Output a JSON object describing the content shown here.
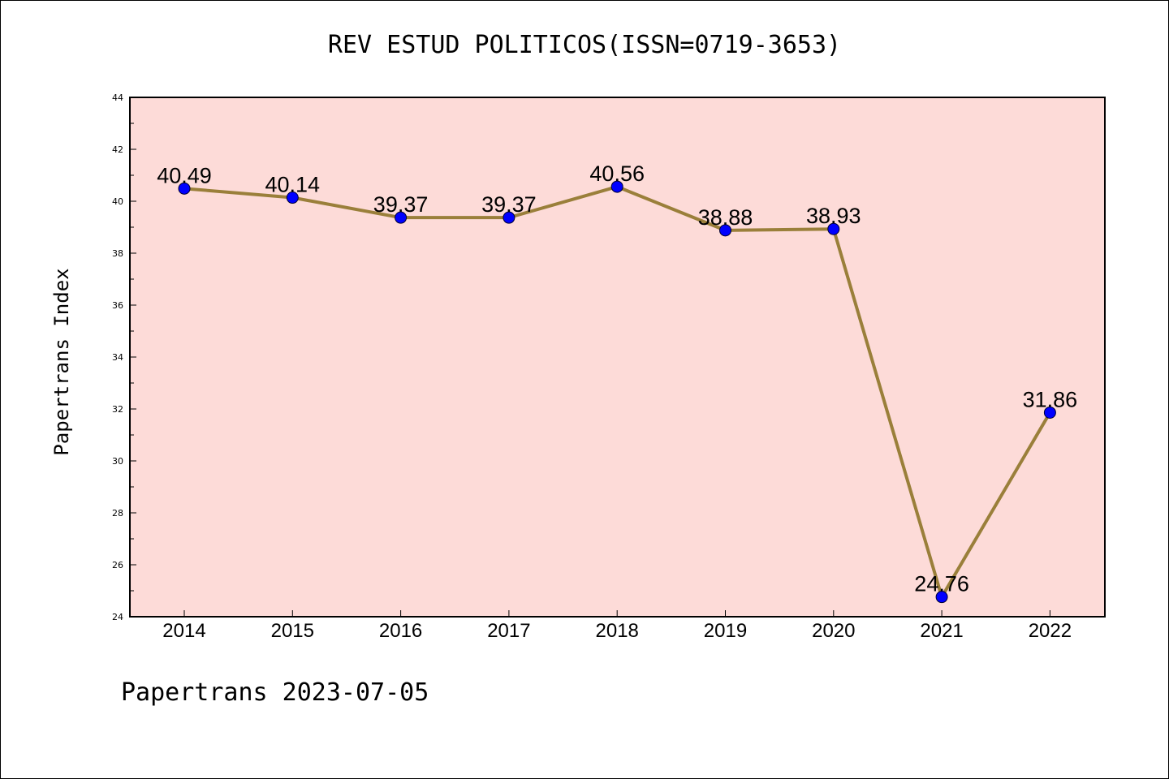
{
  "chart_data": {
    "type": "line",
    "title": "REV ESTUD POLITICOS(ISSN=0719-3653)",
    "xlabel": "",
    "ylabel": "Papertrans Index",
    "categories": [
      "2014",
      "2015",
      "2016",
      "2017",
      "2018",
      "2019",
      "2020",
      "2021",
      "2022"
    ],
    "series": [
      {
        "values": [
          40.49,
          40.14,
          39.37,
          39.37,
          40.56,
          38.88,
          38.93,
          24.76,
          31.86
        ],
        "labels": [
          "40.49",
          "40.14",
          "39.37",
          "39.37",
          "40.56",
          "38.88",
          "38.93",
          "24.76",
          "31.86"
        ]
      }
    ],
    "ylim": [
      24,
      44
    ],
    "yticks": [
      "24",
      "26",
      "28",
      "30",
      "32",
      "34",
      "36",
      "38",
      "40",
      "42",
      "44"
    ],
    "grid": false,
    "colors": {
      "plot_background": "#fddbd8",
      "line": "#9a7f3a",
      "marker": "#0000ff"
    }
  },
  "footer": "Papertrans 2023-07-05"
}
